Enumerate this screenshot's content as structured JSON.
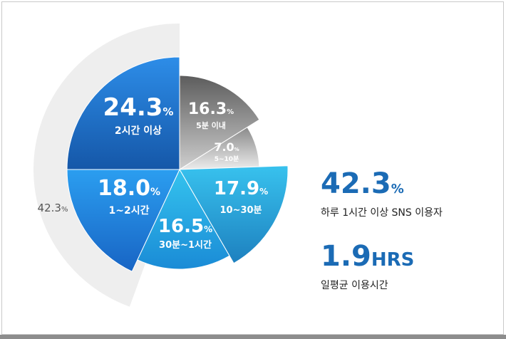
{
  "chart_data": {
    "type": "pie",
    "unit": "%",
    "slices": [
      {
        "label": "2시간 이상",
        "value": 24.3,
        "color_top": "#2d8de8",
        "color_bottom": "#1557a8"
      },
      {
        "label": "5분 이내",
        "value": 16.3,
        "color_top": "#5c5c5c",
        "color_bottom": "#cfcfcf"
      },
      {
        "label": "5~10분",
        "value": 7.0,
        "color_top": "#8a8a8a",
        "color_bottom": "#ececec"
      },
      {
        "label": "10~30분",
        "value": 17.9,
        "color_top": "#38c2ee",
        "color_bottom": "#1d80bf"
      },
      {
        "label": "30분~1시간",
        "value": 16.5,
        "color_top": "#35c3ee",
        "color_bottom": "#1a8bd6"
      },
      {
        "label": "1~2시간",
        "value": 18.0,
        "color_top": "#2b9ef0",
        "color_bottom": "#1864c4"
      }
    ],
    "background_ring": {
      "value": 42.3,
      "color": "#eeeeee"
    },
    "text_color": "#ffffff"
  },
  "stats": [
    {
      "value": "42.3",
      "unit": "%",
      "caption": "하루 1시간 이상 SNS 이용자"
    },
    {
      "value": "1.9",
      "unit": "HRS",
      "caption": "일평균 이용시간"
    }
  ],
  "accent_color": "#1b6bb5"
}
